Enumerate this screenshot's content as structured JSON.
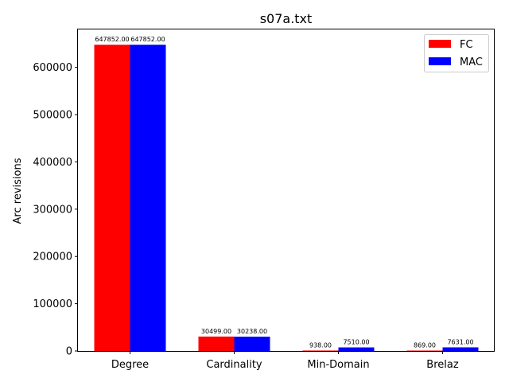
{
  "chart_data": {
    "type": "bar",
    "title": "s07a.txt",
    "xlabel": "",
    "ylabel": "Arc revisions",
    "categories": [
      "Degree",
      "Cardinality",
      "Min-Domain",
      "Brelaz"
    ],
    "series": [
      {
        "name": "FC",
        "color": "#ff0000",
        "values": [
          647852,
          30499,
          938,
          869
        ],
        "labels": [
          "647852.00",
          "30499.00",
          "938.00",
          "869.00"
        ]
      },
      {
        "name": "MAC",
        "color": "#0000ff",
        "values": [
          647852,
          30238,
          7510,
          7631
        ],
        "labels": [
          "647852.00",
          "30238.00",
          "7510.00",
          "7631.00"
        ]
      }
    ],
    "ylim": [
      0,
      680237
    ],
    "yticks": [
      0,
      100000,
      200000,
      300000,
      400000,
      500000,
      600000
    ],
    "ytick_labels": [
      "0",
      "100000",
      "200000",
      "300000",
      "400000",
      "500000",
      "600000"
    ],
    "grid": false,
    "legend": "top-right"
  }
}
